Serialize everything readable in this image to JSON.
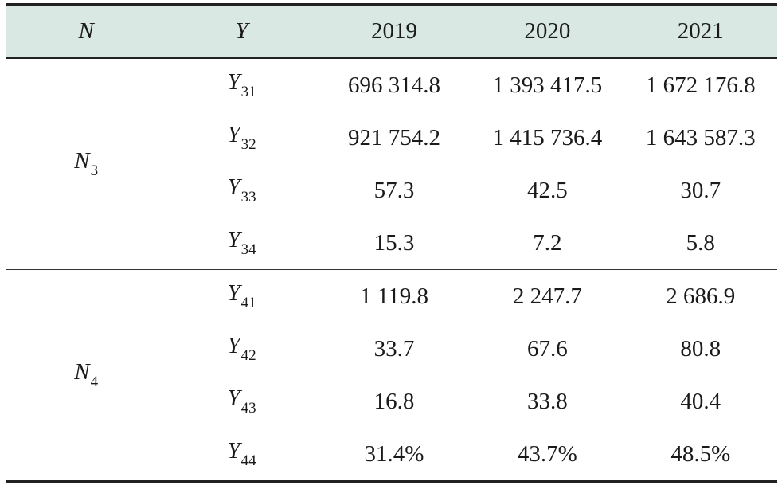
{
  "header": {
    "col_n": "N",
    "col_y": "Y",
    "years": [
      "2019",
      "2020",
      "2021"
    ]
  },
  "groups": [
    {
      "label": "N",
      "label_sub": "3",
      "rows": [
        {
          "y": "Y",
          "y_sub": "31",
          "values": [
            "696 314.8",
            "1 393 417.5",
            "1 672 176.8"
          ]
        },
        {
          "y": "Y",
          "y_sub": "32",
          "values": [
            "921 754.2",
            "1 415 736.4",
            "1 643 587.3"
          ]
        },
        {
          "y": "Y",
          "y_sub": "33",
          "values": [
            "57.3",
            "42.5",
            "30.7"
          ]
        },
        {
          "y": "Y",
          "y_sub": "34",
          "values": [
            "15.3",
            "7.2",
            "5.8"
          ]
        }
      ]
    },
    {
      "label": "N",
      "label_sub": "4",
      "rows": [
        {
          "y": "Y",
          "y_sub": "41",
          "values": [
            "1 119.8",
            "2 247.7",
            "2 686.9"
          ]
        },
        {
          "y": "Y",
          "y_sub": "42",
          "values": [
            "33.7",
            "67.6",
            "80.8"
          ]
        },
        {
          "y": "Y",
          "y_sub": "43",
          "values": [
            "16.8",
            "33.8",
            "40.4"
          ]
        },
        {
          "y": "Y",
          "y_sub": "44",
          "values": [
            "31.4%",
            "43.7%",
            "48.5%"
          ]
        }
      ]
    }
  ],
  "colors": {
    "header_bg": "#d9e8e3",
    "rule": "#222222",
    "text": "#1a1a1a"
  }
}
